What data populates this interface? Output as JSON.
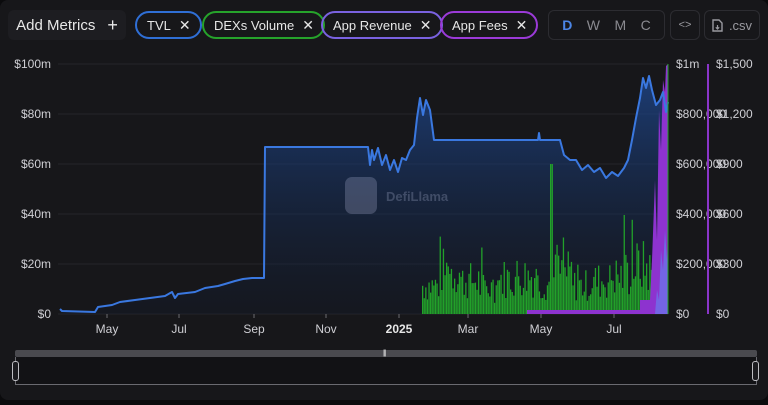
{
  "toolbar": {
    "add_metrics_label": "Add Metrics",
    "add_icon": "+",
    "chips": [
      {
        "label": "TVL",
        "color": "#2f6fd6"
      },
      {
        "label": "DEXs Volume",
        "color": "#26a32b"
      },
      {
        "label": "App Revenue",
        "color": "#7a62e0"
      },
      {
        "label": "App Fees",
        "color": "#9b3ad8"
      }
    ],
    "remove_icon": "✕",
    "granularity": {
      "options": [
        "D",
        "W",
        "M",
        "C"
      ],
      "selected": "D"
    },
    "embed_icon": "<>",
    "csv_label": ".csv"
  },
  "watermark": {
    "text": "DefiLlama"
  },
  "colors": {
    "tvl": "#3a78e0",
    "dex_volume": "#22a12a",
    "app_revenue": "#7b6ae6",
    "app_fees": "#9536d6",
    "background": "#17171a",
    "grid": "#2a2a2e"
  },
  "chart_data": {
    "type": "line",
    "title": "",
    "xlabel": "",
    "ylabel": "",
    "x_tick_labels": [
      "May",
      "Jul",
      "Sep",
      "Nov",
      "2025",
      "Mar",
      "May",
      "Jul"
    ],
    "x_range": [
      "2024-04",
      "2025-08"
    ],
    "grid": true,
    "legend_position": "top (chips)",
    "axes": [
      {
        "id": "left",
        "series": "TVL",
        "ticks": [
          "$0",
          "$20m",
          "$40m",
          "$60m",
          "$80m",
          "$100m"
        ],
        "ylim": [
          0,
          100000000
        ]
      },
      {
        "id": "right1",
        "series": "DEXs Volume",
        "ticks": [
          "$0",
          "$200,000",
          "$400,000",
          "$600,000",
          "$800,000",
          "$1m"
        ],
        "ylim": [
          0,
          1000000
        ]
      },
      {
        "id": "right2",
        "series": "App Revenue / App Fees",
        "ticks": [
          "$0",
          "$300",
          "$600",
          "$900",
          "$1,200",
          "$1,500"
        ],
        "ylim": [
          0,
          1500
        ]
      }
    ],
    "series": [
      {
        "name": "TVL",
        "type": "area-line",
        "axis": "left",
        "x": [
          "2024-03-25",
          "2024-04-10",
          "2024-04-20",
          "2024-05-10",
          "2024-06-01",
          "2024-06-25",
          "2024-07-10",
          "2024-07-25",
          "2024-08-10",
          "2024-08-25",
          "2024-09-05",
          "2024-09-06",
          "2024-10-01",
          "2024-11-01",
          "2024-11-30",
          "2024-12-05",
          "2024-12-15",
          "2024-12-25",
          "2025-01-05",
          "2025-01-12",
          "2025-01-20",
          "2025-02-01",
          "2025-03-01",
          "2025-04-01",
          "2025-04-30",
          "2025-05-15",
          "2025-06-01",
          "2025-06-15",
          "2025-07-01",
          "2025-07-10",
          "2025-07-20",
          "2025-07-28",
          "2025-08-05"
        ],
        "values": [
          1000000,
          500000,
          1500000,
          3500000,
          5000000,
          7000000,
          9000000,
          10500000,
          11500000,
          13500000,
          14500000,
          67000000,
          67000000,
          67000000,
          67000000,
          62000000,
          66000000,
          56000000,
          62000000,
          86000000,
          82000000,
          69000000,
          69000000,
          69000000,
          69000000,
          62000000,
          58000000,
          57000000,
          62000000,
          80000000,
          95000000,
          82000000,
          90000000
        ]
      },
      {
        "name": "DEXs Volume",
        "type": "bar",
        "axis": "right1",
        "x": [
          "2025-01-20",
          "2025-02-01",
          "2025-02-15",
          "2025-03-01",
          "2025-03-15",
          "2025-04-01",
          "2025-04-15",
          "2025-05-01",
          "2025-05-15",
          "2025-06-01",
          "2025-06-15",
          "2025-07-01",
          "2025-07-15"
        ],
        "values": [
          120000,
          180000,
          140000,
          110000,
          150000,
          160000,
          130000,
          170000,
          120000,
          140000,
          160000,
          200000,
          180000
        ],
        "peak": {
          "x": "2025-04-10",
          "value": 600000
        }
      },
      {
        "name": "App Revenue",
        "type": "area",
        "axis": "right2",
        "x": [
          "2025-07-25",
          "2025-08-01",
          "2025-08-05"
        ],
        "values": [
          200,
          350,
          500
        ]
      },
      {
        "name": "App Fees",
        "type": "area",
        "axis": "right2",
        "x": [
          "2025-03-25",
          "2025-06-28",
          "2025-07-20",
          "2025-07-28",
          "2025-08-05"
        ],
        "values": [
          15,
          110,
          110,
          1200,
          1500
        ]
      }
    ]
  }
}
